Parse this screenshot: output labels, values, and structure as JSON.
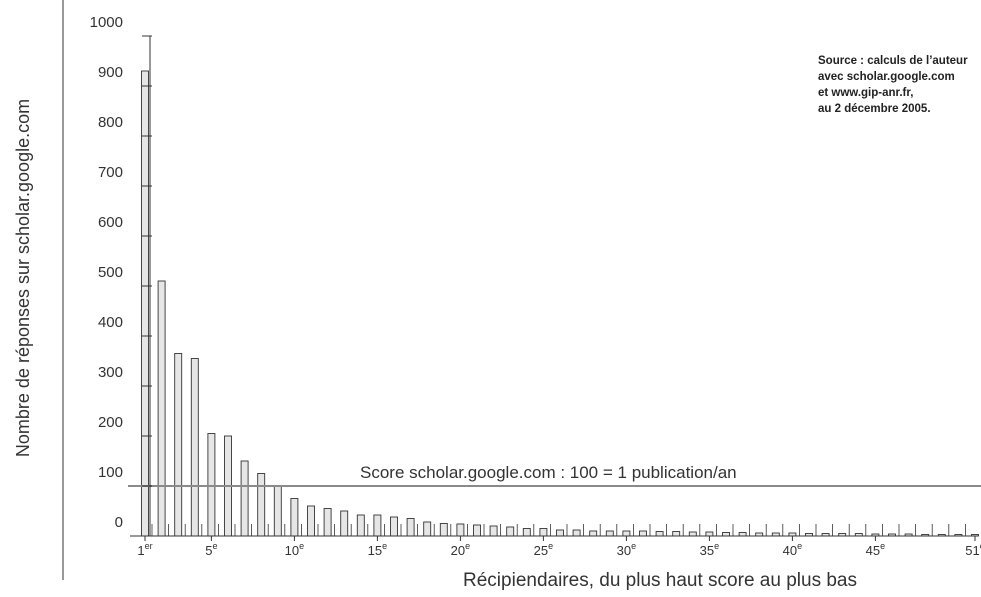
{
  "chart_data": {
    "type": "bar",
    "ylabel": "Nombre de réponses sur scholar.google.com",
    "xlabel": "Récipiendaires, du plus haut score au plus bas",
    "ylim": [
      0,
      1000
    ],
    "yticks": [
      0,
      100,
      200,
      300,
      400,
      500,
      600,
      700,
      800,
      900,
      1000
    ],
    "xticks": [
      {
        "rank": 1,
        "num": "1",
        "sup": "er"
      },
      {
        "rank": 5,
        "num": "5",
        "sup": "e"
      },
      {
        "rank": 10,
        "num": "10",
        "sup": "e"
      },
      {
        "rank": 15,
        "num": "15",
        "sup": "e"
      },
      {
        "rank": 20,
        "num": "20",
        "sup": "e"
      },
      {
        "rank": 25,
        "num": "25",
        "sup": "e"
      },
      {
        "rank": 30,
        "num": "30",
        "sup": "e"
      },
      {
        "rank": 35,
        "num": "35",
        "sup": "e"
      },
      {
        "rank": 40,
        "num": "40",
        "sup": "e"
      },
      {
        "rank": 45,
        "num": "45",
        "sup": "e"
      },
      {
        "rank": 51,
        "num": "51",
        "sup": "e"
      }
    ],
    "values": [
      930,
      510,
      365,
      355,
      205,
      200,
      150,
      125,
      100,
      75,
      60,
      55,
      50,
      42,
      42,
      38,
      35,
      28,
      25,
      24,
      22,
      20,
      18,
      15,
      15,
      12,
      12,
      10,
      10,
      10,
      10,
      9,
      9,
      8,
      8,
      7,
      7,
      6,
      6,
      6,
      5,
      5,
      5,
      5,
      4,
      4,
      4,
      3,
      3,
      3,
      3
    ],
    "reference_line": {
      "value": 100,
      "label": "Score scholar.google.com : 100 = 1 publication/an"
    },
    "colors": {
      "bar_fill": "#e6e6e6",
      "bar_stroke": "#333333",
      "ref_line": "#8a8a8a",
      "axis": "#333333"
    }
  },
  "source_note": {
    "lines": [
      "Source : calculs de l’auteur",
      "avec scholar.google.com",
      "et www.gip-anr.fr,",
      "au 2 décembre 2005."
    ]
  }
}
